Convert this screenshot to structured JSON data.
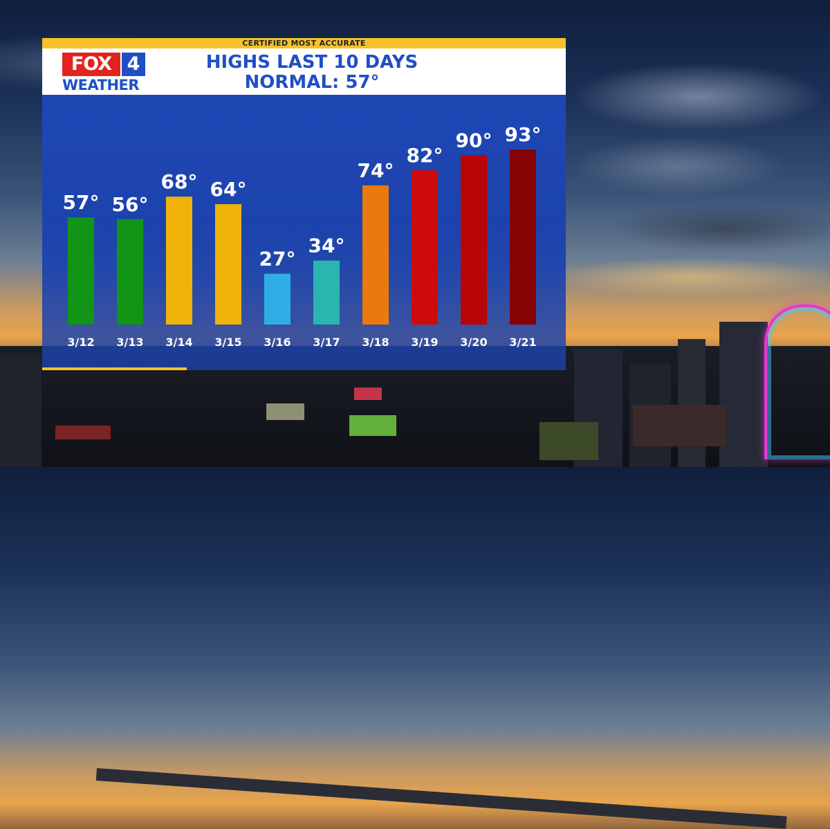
{
  "banner": "CERTIFIED MOST ACCURATE",
  "logo": {
    "fox": "FOX",
    "number": "4",
    "weather": "WEATHER"
  },
  "title_line1": "HIGHS LAST 10 DAYS",
  "title_line2": "NORMAL: 57°",
  "colors": {
    "brand_red": "#e2241e",
    "brand_blue": "#1f4fc6",
    "accent_yellow": "#f7c228",
    "panel_blue": "#1c43ad"
  },
  "chart_data": {
    "type": "bar",
    "title": "HIGHS LAST 10 DAYS",
    "subtitle": "NORMAL: 57°",
    "categories": [
      "3/12",
      "3/13",
      "3/14",
      "3/15",
      "3/16",
      "3/17",
      "3/18",
      "3/19",
      "3/20",
      "3/21"
    ],
    "values": [
      57,
      56,
      68,
      64,
      27,
      34,
      74,
      82,
      90,
      93
    ],
    "data_labels": [
      "57°",
      "56°",
      "68°",
      "64°",
      "27°",
      "34°",
      "74°",
      "82°",
      "90°",
      "93°"
    ],
    "bar_colors": [
      "#129417",
      "#129417",
      "#f0b30a",
      "#f0b30a",
      "#2faee6",
      "#2bb5b0",
      "#ea7a0e",
      "#cd0b0b",
      "#b80606",
      "#860303"
    ],
    "xlabel": "",
    "ylabel": "",
    "grid": false,
    "legend": "none"
  }
}
